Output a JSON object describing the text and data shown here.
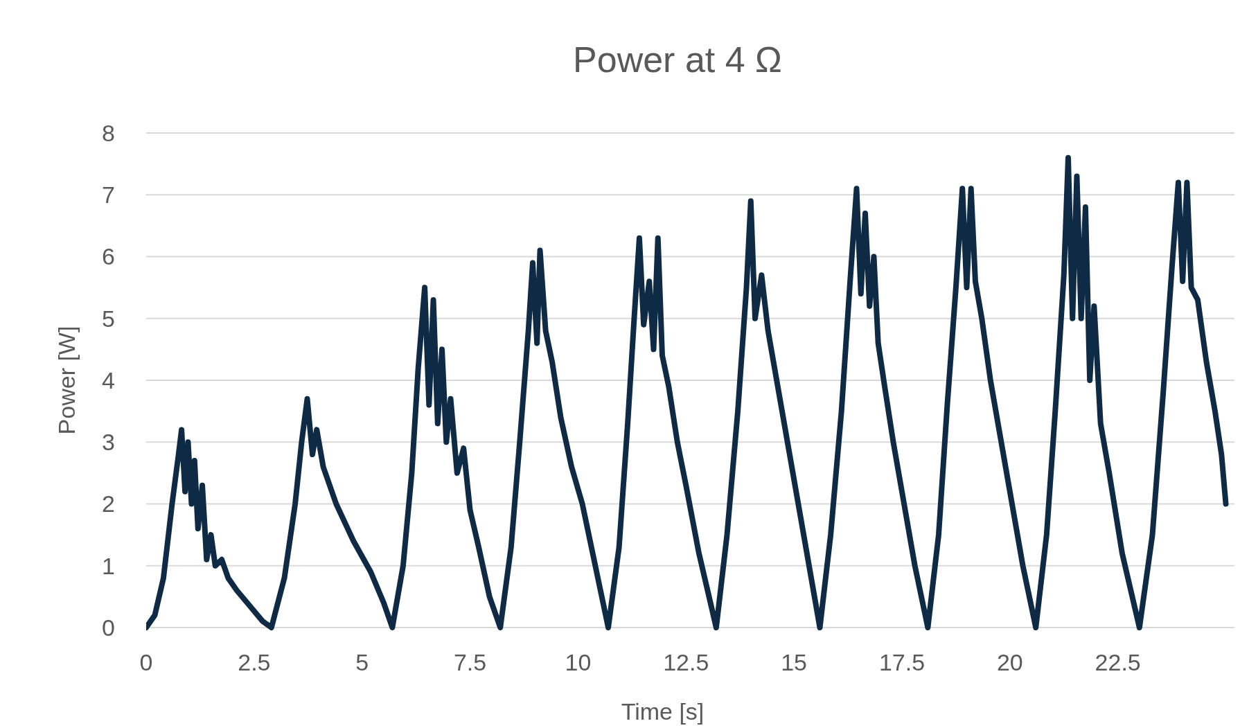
{
  "chart_data": {
    "type": "line",
    "title": "Power at 4 Ω",
    "xlabel": "Time [s]",
    "ylabel": "Power [W]",
    "xlim": [
      0,
      25.2
    ],
    "xticks": [
      0,
      2.5,
      5,
      7.5,
      10,
      12.5,
      15,
      17.5,
      20,
      22.5
    ],
    "ylim": [
      0,
      8
    ],
    "yticks": [
      0,
      1,
      2,
      3,
      4,
      5,
      6,
      7,
      8
    ],
    "grid": "y",
    "line_style": "solid",
    "series": [
      {
        "color": "#0f2a44",
        "x": [
          0,
          0.2,
          0.4,
          0.6,
          0.75,
          0.82,
          0.9,
          0.97,
          1.05,
          1.12,
          1.2,
          1.3,
          1.4,
          1.5,
          1.6,
          1.75,
          1.9,
          2.1,
          2.4,
          2.7,
          2.9,
          3.2,
          3.45,
          3.6,
          3.73,
          3.85,
          3.95,
          4.1,
          4.4,
          4.8,
          5.2,
          5.5,
          5.7,
          5.95,
          6.15,
          6.3,
          6.45,
          6.55,
          6.65,
          6.75,
          6.85,
          6.95,
          7.05,
          7.2,
          7.35,
          7.5,
          7.7,
          7.95,
          8.2,
          8.45,
          8.65,
          8.85,
          8.95,
          9.05,
          9.12,
          9.25,
          9.4,
          9.6,
          9.85,
          10.1,
          10.4,
          10.7,
          10.95,
          11.15,
          11.3,
          11.42,
          11.52,
          11.65,
          11.75,
          11.85,
          11.95,
          12.1,
          12.3,
          12.5,
          12.8,
          13.2,
          13.45,
          13.7,
          13.9,
          14.0,
          14.1,
          14.25,
          14.4,
          14.6,
          14.85,
          15.1,
          15.35,
          15.6,
          15.85,
          16.1,
          16.3,
          16.45,
          16.55,
          16.65,
          16.75,
          16.85,
          16.95,
          17.1,
          17.3,
          17.5,
          17.8,
          18.1,
          18.35,
          18.55,
          18.75,
          18.9,
          19.0,
          19.1,
          19.2,
          19.35,
          19.55,
          19.8,
          20.05,
          20.3,
          20.6,
          20.85,
          21.05,
          21.25,
          21.35,
          21.45,
          21.55,
          21.65,
          21.75,
          21.85,
          21.95,
          22.1,
          22.3,
          22.6,
          23.0,
          23.3,
          23.55,
          23.75,
          23.9,
          24.0,
          24.1,
          24.2,
          24.35,
          24.55,
          24.75,
          24.9,
          25.0
        ],
        "values": [
          0,
          0.2,
          0.8,
          2.0,
          2.8,
          3.2,
          2.2,
          3.0,
          2.0,
          2.7,
          1.6,
          2.3,
          1.1,
          1.5,
          1.0,
          1.1,
          0.8,
          0.6,
          0.35,
          0.1,
          0,
          0.8,
          2.0,
          3.0,
          3.7,
          2.8,
          3.2,
          2.6,
          2.0,
          1.4,
          0.9,
          0.4,
          0,
          1.0,
          2.5,
          4.2,
          5.5,
          3.6,
          5.3,
          3.3,
          4.5,
          3.0,
          3.7,
          2.5,
          2.9,
          1.9,
          1.3,
          0.5,
          0,
          1.3,
          3.0,
          4.8,
          5.9,
          4.6,
          6.1,
          4.8,
          4.3,
          3.4,
          2.6,
          2.0,
          1.0,
          0,
          1.3,
          3.3,
          5.0,
          6.3,
          4.9,
          5.6,
          4.5,
          6.3,
          4.4,
          3.9,
          3.0,
          2.3,
          1.2,
          0,
          1.5,
          3.5,
          5.5,
          6.9,
          5.0,
          5.7,
          4.8,
          4.0,
          3.0,
          2.0,
          1.0,
          0,
          1.5,
          3.5,
          5.6,
          7.1,
          5.4,
          6.7,
          5.2,
          6.0,
          4.6,
          3.9,
          3.0,
          2.2,
          1.0,
          0,
          1.5,
          3.6,
          5.5,
          7.1,
          5.5,
          7.1,
          5.6,
          5.0,
          4.0,
          3.0,
          2.0,
          1.0,
          0,
          1.5,
          3.5,
          5.7,
          7.6,
          5.0,
          7.3,
          5.0,
          6.8,
          4.0,
          5.2,
          3.3,
          2.5,
          1.2,
          0,
          1.5,
          3.8,
          5.8,
          7.2,
          5.6,
          7.2,
          5.5,
          5.3,
          4.3,
          3.5,
          2.8,
          2.0
        ]
      }
    ]
  }
}
